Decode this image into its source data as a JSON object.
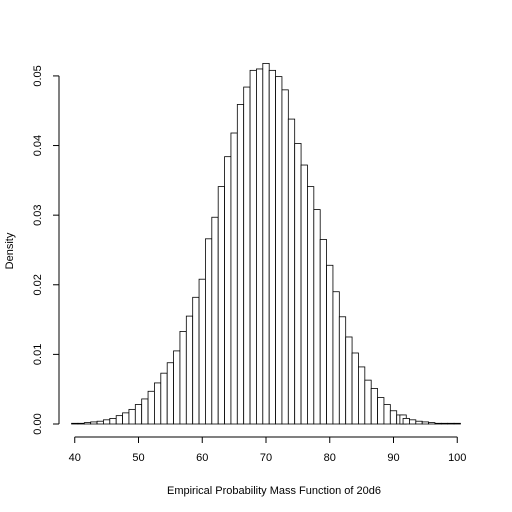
{
  "chart_data": {
    "type": "bar",
    "title": "",
    "xlabel": "Empirical Probability Mass Function of 20d6",
    "ylabel": "Density",
    "xlim": [
      38,
      102
    ],
    "ylim": [
      0,
      0.052
    ],
    "x_ticks": [
      40,
      50,
      60,
      70,
      80,
      90,
      100
    ],
    "y_ticks": [
      0.0,
      0.01,
      0.02,
      0.03,
      0.04,
      0.05
    ],
    "y_tick_labels": [
      "0.00",
      "0.01",
      "0.02",
      "0.03",
      "0.04",
      "0.05"
    ],
    "grid": false,
    "x": [
      40,
      41,
      42,
      43,
      44,
      45,
      46,
      47,
      48,
      49,
      50,
      51,
      52,
      53,
      54,
      55,
      56,
      57,
      58,
      59,
      60,
      61,
      62,
      63,
      64,
      65,
      66,
      67,
      68,
      69,
      70,
      71,
      72,
      73,
      74,
      75,
      76,
      77,
      78,
      79,
      80,
      81,
      82,
      83,
      84,
      85,
      86,
      87,
      88,
      89,
      90,
      91,
      91.5,
      92,
      93,
      94,
      95,
      96,
      97,
      98,
      99,
      100
    ],
    "values": [
      0.0001,
      0.0001,
      0.0002,
      0.0003,
      0.0004,
      0.0006,
      0.0008,
      0.0012,
      0.0016,
      0.0021,
      0.0028,
      0.0036,
      0.0047,
      0.0059,
      0.0073,
      0.0088,
      0.0105,
      0.0133,
      0.0155,
      0.0182,
      0.0208,
      0.0266,
      0.0297,
      0.0341,
      0.0384,
      0.0418,
      0.0459,
      0.0484,
      0.0508,
      0.051,
      0.0518,
      0.0508,
      0.0499,
      0.048,
      0.0438,
      0.0403,
      0.0372,
      0.0341,
      0.0308,
      0.0265,
      0.0228,
      0.019,
      0.0154,
      0.0125,
      0.0102,
      0.0082,
      0.0063,
      0.0051,
      0.0038,
      0.0028,
      0.0019,
      0.0013,
      0.0013,
      0.0008,
      0.0006,
      0.0004,
      0.0003,
      0.0002,
      0.0001,
      0.0001,
      0.0001,
      0.0001
    ]
  }
}
